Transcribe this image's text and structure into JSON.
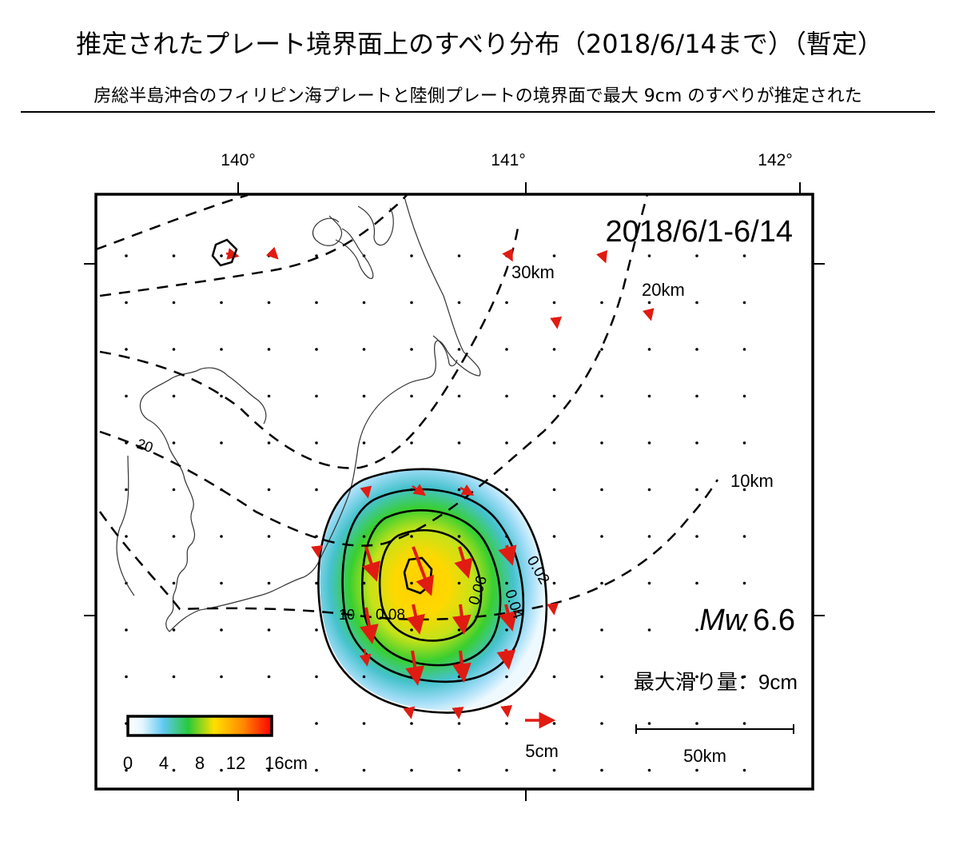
{
  "title": "推定されたプレート境界面上のすべり分布（2018/6/14まで）（暫定）",
  "subtitle": "房総半島沖合のフィリピン海プレートと陸側プレートの境界面で最大 9cm のすべりが推定された",
  "map": {
    "period": "2018/6/1-6/14",
    "magnitude_prefix": "Mw",
    "magnitude_value": "6.6",
    "max_slip_label": "最大滑り量：9cm",
    "longitude_ticks": [
      "140°",
      "141°",
      "142°"
    ],
    "depth_labels": [
      "30km",
      "20km",
      "10km"
    ],
    "small_depth_labels": [
      "20",
      "10"
    ],
    "contour_labels": [
      "0.02",
      "0.04",
      "0.06",
      "0.08"
    ],
    "colorbar_ticks": [
      "0",
      "4",
      "8",
      "12",
      "16cm"
    ],
    "vector_scale_label": "5cm",
    "distance_scale_label": "50km",
    "colors": {
      "vector": "#e01b12",
      "slip_low": "#cfeefc",
      "slip_mid": "#3fcf2a",
      "slip_high": "#ffd000",
      "slip_peak": "#ff2a00"
    }
  }
}
